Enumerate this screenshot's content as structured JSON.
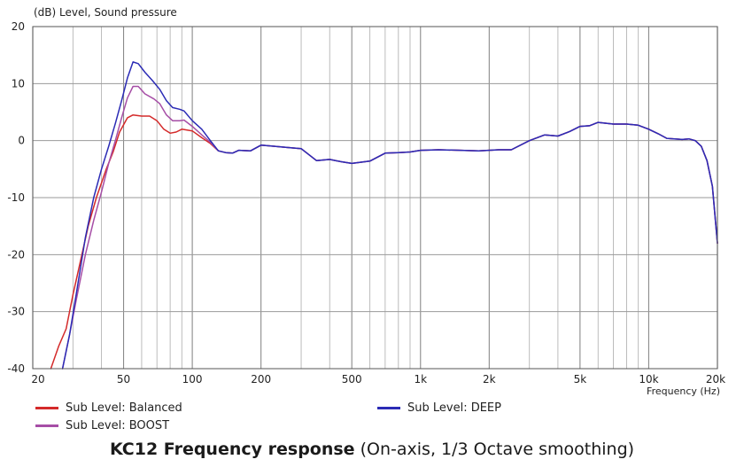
{
  "chart_data": {
    "type": "line",
    "ylabel": "(dB)  Level, Sound pressure",
    "xlabel": "Frequency  (Hz)",
    "xscale": "log",
    "xlim": [
      20,
      20000
    ],
    "ylim": [
      -40,
      20
    ],
    "yticks": [
      20,
      10,
      0,
      -10,
      -20,
      -30,
      -40
    ],
    "xtick_labels": [
      {
        "value": 20,
        "label": "20"
      },
      {
        "value": 50,
        "label": "50"
      },
      {
        "value": 100,
        "label": "100"
      },
      {
        "value": 200,
        "label": "200"
      },
      {
        "value": 500,
        "label": "500"
      },
      {
        "value": 1000,
        "label": "1k"
      },
      {
        "value": 2000,
        "label": "2k"
      },
      {
        "value": 5000,
        "label": "5k"
      },
      {
        "value": 10000,
        "label": "10k"
      },
      {
        "value": 20000,
        "label": "20k"
      }
    ],
    "grid": true,
    "legend_position": "bottom",
    "series": [
      {
        "name": "Sub Level: Balanced",
        "color": "#d42a2a",
        "points": [
          [
            24,
            -40
          ],
          [
            26,
            -36
          ],
          [
            28,
            -33
          ],
          [
            30,
            -27
          ],
          [
            32,
            -22
          ],
          [
            35,
            -15
          ],
          [
            38,
            -10
          ],
          [
            42,
            -5
          ],
          [
            45,
            -2
          ],
          [
            48,
            1.5
          ],
          [
            52,
            4
          ],
          [
            55,
            4.5
          ],
          [
            60,
            4.3
          ],
          [
            65,
            4.3
          ],
          [
            70,
            3.5
          ],
          [
            75,
            2
          ],
          [
            80,
            1.3
          ],
          [
            85,
            1.5
          ],
          [
            90,
            2
          ],
          [
            100,
            1.7
          ],
          [
            110,
            0.5
          ],
          [
            120,
            -0.5
          ],
          [
            130,
            -1.8
          ],
          [
            140,
            -2.1
          ],
          [
            150,
            -2.2
          ],
          [
            160,
            -1.7
          ],
          [
            180,
            -1.8
          ],
          [
            200,
            -0.8
          ],
          [
            230,
            -1
          ],
          [
            260,
            -1.2
          ],
          [
            300,
            -1.4
          ],
          [
            350,
            -3.5
          ],
          [
            400,
            -3.3
          ],
          [
            450,
            -3.7
          ],
          [
            500,
            -4
          ],
          [
            600,
            -3.6
          ],
          [
            700,
            -2.2
          ],
          [
            800,
            -2.1
          ],
          [
            900,
            -2
          ],
          [
            1000,
            -1.7
          ],
          [
            1200,
            -1.6
          ],
          [
            1500,
            -1.7
          ],
          [
            1800,
            -1.8
          ],
          [
            2200,
            -1.6
          ],
          [
            2500,
            -1.6
          ],
          [
            3000,
            0
          ],
          [
            3500,
            1
          ],
          [
            4000,
            0.8
          ],
          [
            4500,
            1.6
          ],
          [
            5000,
            2.5
          ],
          [
            5500,
            2.6
          ],
          [
            6000,
            3.2
          ],
          [
            7000,
            2.9
          ],
          [
            8000,
            2.9
          ],
          [
            9000,
            2.7
          ],
          [
            10000,
            2
          ],
          [
            11000,
            1.2
          ],
          [
            12000,
            0.4
          ],
          [
            14000,
            0.2
          ],
          [
            15000,
            0.3
          ],
          [
            16000,
            0
          ],
          [
            17000,
            -1
          ],
          [
            18000,
            -3.5
          ],
          [
            19000,
            -8
          ],
          [
            20000,
            -18
          ]
        ]
      },
      {
        "name": "Sub Level: BOOST",
        "color": "#a64ea6",
        "points": [
          [
            27,
            -40
          ],
          [
            29,
            -34
          ],
          [
            31,
            -28
          ],
          [
            34,
            -20
          ],
          [
            37,
            -14
          ],
          [
            40,
            -9
          ],
          [
            43,
            -4
          ],
          [
            46,
            0
          ],
          [
            49,
            4
          ],
          [
            52,
            7.5
          ],
          [
            55,
            9.5
          ],
          [
            58,
            9.5
          ],
          [
            62,
            8.2
          ],
          [
            68,
            7.3
          ],
          [
            72,
            6.5
          ],
          [
            77,
            4.5
          ],
          [
            82,
            3.5
          ],
          [
            88,
            3.5
          ],
          [
            92,
            3.6
          ],
          [
            100,
            2.5
          ],
          [
            110,
            1
          ],
          [
            120,
            -0.3
          ],
          [
            130,
            -1.8
          ],
          [
            140,
            -2.1
          ],
          [
            150,
            -2.2
          ],
          [
            160,
            -1.7
          ],
          [
            180,
            -1.8
          ],
          [
            200,
            -0.8
          ],
          [
            230,
            -1
          ],
          [
            260,
            -1.2
          ],
          [
            300,
            -1.4
          ],
          [
            350,
            -3.5
          ],
          [
            400,
            -3.3
          ],
          [
            450,
            -3.7
          ],
          [
            500,
            -4
          ],
          [
            600,
            -3.6
          ],
          [
            700,
            -2.2
          ],
          [
            800,
            -2.1
          ],
          [
            900,
            -2
          ],
          [
            1000,
            -1.7
          ],
          [
            1200,
            -1.6
          ],
          [
            1500,
            -1.7
          ],
          [
            1800,
            -1.8
          ],
          [
            2200,
            -1.6
          ],
          [
            2500,
            -1.6
          ],
          [
            3000,
            0
          ],
          [
            3500,
            1
          ],
          [
            4000,
            0.8
          ],
          [
            4500,
            1.6
          ],
          [
            5000,
            2.5
          ],
          [
            5500,
            2.6
          ],
          [
            6000,
            3.2
          ],
          [
            7000,
            2.9
          ],
          [
            8000,
            2.9
          ],
          [
            9000,
            2.7
          ],
          [
            10000,
            2
          ],
          [
            11000,
            1.2
          ],
          [
            12000,
            0.4
          ],
          [
            14000,
            0.2
          ],
          [
            15000,
            0.3
          ],
          [
            16000,
            0
          ],
          [
            17000,
            -1
          ],
          [
            18000,
            -3.5
          ],
          [
            19000,
            -8
          ],
          [
            20000,
            -18
          ]
        ]
      },
      {
        "name": "Sub Level: DEEP",
        "color": "#2b2bb5",
        "points": [
          [
            27,
            -40
          ],
          [
            29,
            -34
          ],
          [
            31,
            -27
          ],
          [
            34,
            -17
          ],
          [
            37,
            -10
          ],
          [
            40,
            -5
          ],
          [
            43,
            -1
          ],
          [
            46,
            3
          ],
          [
            49,
            7
          ],
          [
            52,
            11
          ],
          [
            55,
            13.8
          ],
          [
            58,
            13.5
          ],
          [
            62,
            12
          ],
          [
            67,
            10.5
          ],
          [
            72,
            9
          ],
          [
            77,
            7
          ],
          [
            82,
            5.8
          ],
          [
            88,
            5.5
          ],
          [
            92,
            5.2
          ],
          [
            100,
            3.5
          ],
          [
            110,
            2
          ],
          [
            120,
            0
          ],
          [
            130,
            -1.8
          ],
          [
            140,
            -2.1
          ],
          [
            150,
            -2.2
          ],
          [
            160,
            -1.7
          ],
          [
            180,
            -1.8
          ],
          [
            200,
            -0.8
          ],
          [
            230,
            -1
          ],
          [
            260,
            -1.2
          ],
          [
            300,
            -1.4
          ],
          [
            350,
            -3.5
          ],
          [
            400,
            -3.3
          ],
          [
            450,
            -3.7
          ],
          [
            500,
            -4
          ],
          [
            600,
            -3.6
          ],
          [
            700,
            -2.2
          ],
          [
            800,
            -2.1
          ],
          [
            900,
            -2
          ],
          [
            1000,
            -1.7
          ],
          [
            1200,
            -1.6
          ],
          [
            1500,
            -1.7
          ],
          [
            1800,
            -1.8
          ],
          [
            2200,
            -1.6
          ],
          [
            2500,
            -1.6
          ],
          [
            3000,
            0
          ],
          [
            3500,
            1
          ],
          [
            4000,
            0.8
          ],
          [
            4500,
            1.6
          ],
          [
            5000,
            2.5
          ],
          [
            5500,
            2.6
          ],
          [
            6000,
            3.2
          ],
          [
            7000,
            2.9
          ],
          [
            8000,
            2.9
          ],
          [
            9000,
            2.7
          ],
          [
            10000,
            2
          ],
          [
            11000,
            1.2
          ],
          [
            12000,
            0.4
          ],
          [
            14000,
            0.2
          ],
          [
            15000,
            0.3
          ],
          [
            16000,
            0
          ],
          [
            17000,
            -1
          ],
          [
            18000,
            -3.5
          ],
          [
            19000,
            -8
          ],
          [
            20000,
            -18
          ]
        ]
      }
    ]
  },
  "caption": {
    "bold": "KC12 Frequency response",
    "rest": " (On-axis, 1/3 Octave smoothing)"
  }
}
